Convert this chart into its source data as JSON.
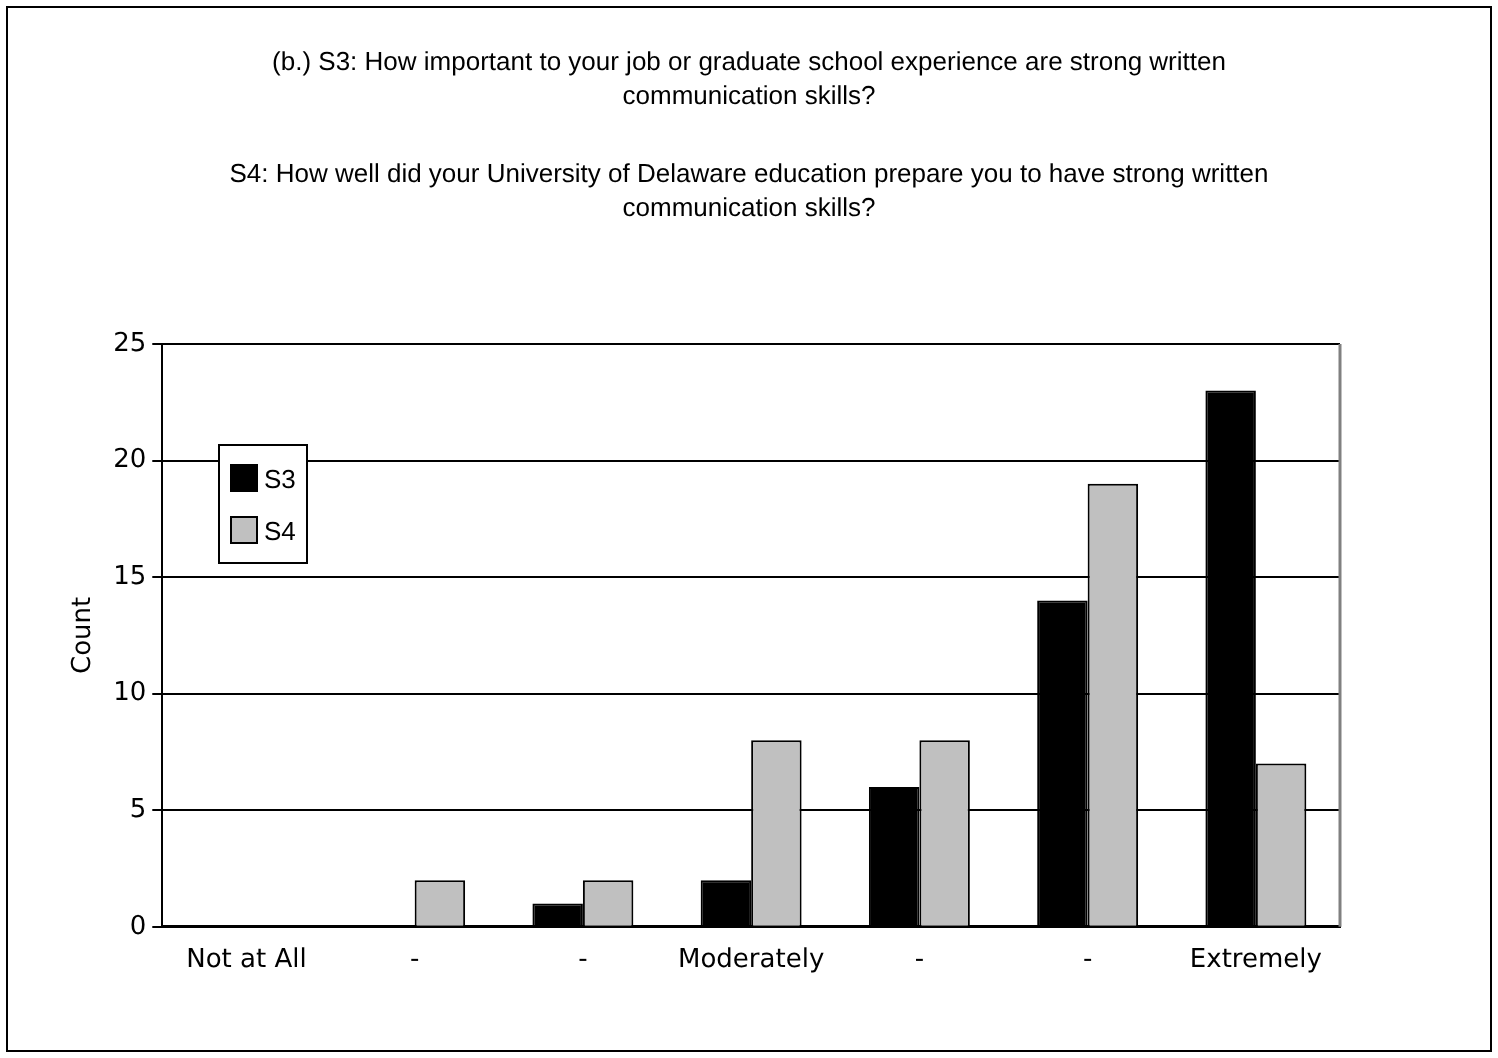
{
  "chart_data": {
    "type": "bar",
    "title": "(b.) S3: How important to your job or graduate school experience are strong written communication skills?",
    "subtitle": "S4: How well did your University of Delaware education prepare you to have strong written communication skills?",
    "ylabel": "Count",
    "categories": [
      "Not at All",
      "-",
      "-",
      "Moderately",
      "-",
      "-",
      "Extremely"
    ],
    "series": [
      {
        "name": "S3",
        "color": "#000000",
        "values": [
          0,
          0,
          1,
          2,
          6,
          14,
          23
        ]
      },
      {
        "name": "S4",
        "color": "#c0c0c0",
        "values": [
          0,
          2,
          2,
          8,
          8,
          19,
          7
        ]
      }
    ],
    "ylim": [
      0,
      25
    ],
    "yticks": [
      0,
      5,
      10,
      15,
      20,
      25
    ],
    "grid": "y",
    "legend": "top left"
  }
}
